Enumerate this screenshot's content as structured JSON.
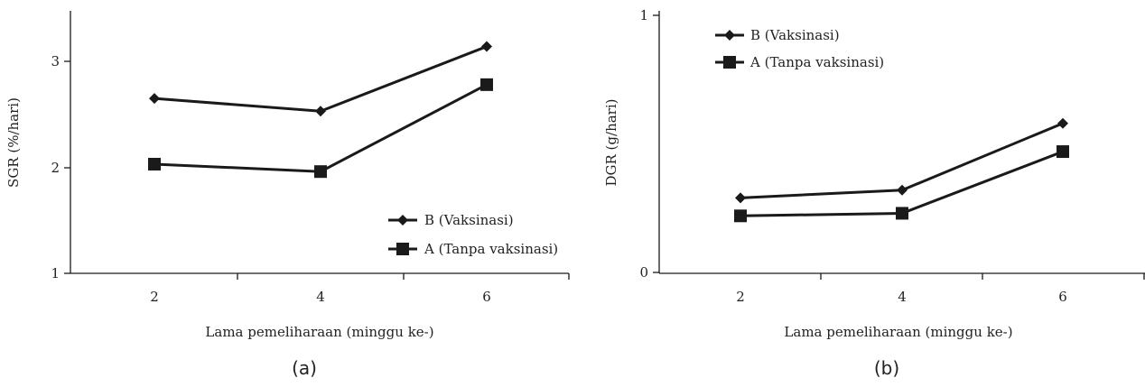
{
  "colors": {
    "ink": "#1a1a1a",
    "background": "#ffffff"
  },
  "chart_data": [
    {
      "type": "line",
      "panel_label": "(a)",
      "title": "",
      "xlabel": "Lama pemeliharaan (minggu ke-)",
      "ylabel": "SGR (%/hari)",
      "categories": [
        "2",
        "4",
        "6"
      ],
      "y_ticks": [
        "1",
        "2",
        "3"
      ],
      "ylim": [
        1,
        3.5
      ],
      "grid": false,
      "legend_position": "bottom-right",
      "series": [
        {
          "name": "B (Vaksinasi)",
          "marker": "diamond",
          "values": [
            2.65,
            2.53,
            3.14
          ]
        },
        {
          "name": "A (Tanpa vaksinasi)",
          "marker": "square",
          "values": [
            2.03,
            1.96,
            2.78
          ]
        }
      ]
    },
    {
      "type": "line",
      "panel_label": "(b)",
      "title": "",
      "xlabel": "Lama pemeliharaan (minggu ke-)",
      "ylabel": "DGR (g/hari)",
      "categories": [
        "2",
        "4",
        "6"
      ],
      "y_ticks": [
        "0",
        "1"
      ],
      "ylim": [
        0,
        1
      ],
      "grid": false,
      "legend_position": "top-left",
      "series": [
        {
          "name": "B (Vaksinasi)",
          "marker": "diamond",
          "values": [
            0.29,
            0.32,
            0.58
          ]
        },
        {
          "name": "A (Tanpa vaksinasi)",
          "marker": "square",
          "values": [
            0.22,
            0.23,
            0.47
          ]
        }
      ]
    }
  ]
}
